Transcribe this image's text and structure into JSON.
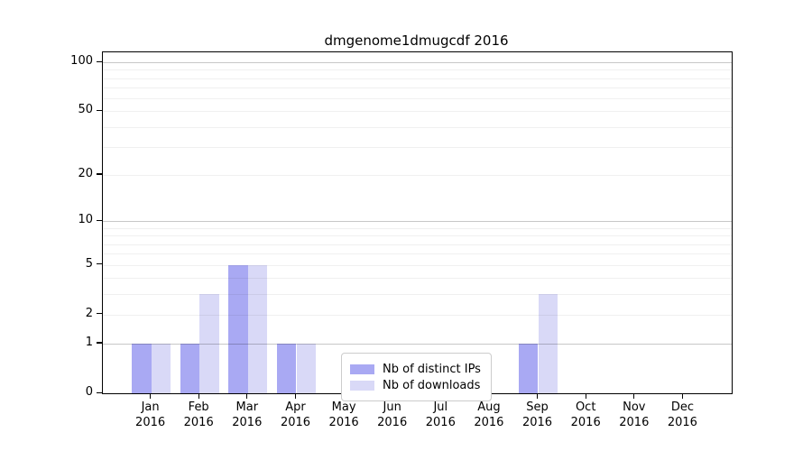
{
  "chart_data": {
    "type": "bar",
    "title": "dmgenome1dmugcdf 2016",
    "categories": [
      "Jan 2016",
      "Feb 2016",
      "Mar 2016",
      "Apr 2016",
      "May 2016",
      "Jun 2016",
      "Jul 2016",
      "Aug 2016",
      "Sep 2016",
      "Oct 2016",
      "Nov 2016",
      "Dec 2016"
    ],
    "x_tick_labels": [
      {
        "month": "Jan",
        "year": "2016"
      },
      {
        "month": "Feb",
        "year": "2016"
      },
      {
        "month": "Mar",
        "year": "2016"
      },
      {
        "month": "Apr",
        "year": "2016"
      },
      {
        "month": "May",
        "year": "2016"
      },
      {
        "month": "Jun",
        "year": "2016"
      },
      {
        "month": "Jul",
        "year": "2016"
      },
      {
        "month": "Aug",
        "year": "2016"
      },
      {
        "month": "Sep",
        "year": "2016"
      },
      {
        "month": "Oct",
        "year": "2016"
      },
      {
        "month": "Nov",
        "year": "2016"
      },
      {
        "month": "Dec",
        "year": "2016"
      }
    ],
    "series": [
      {
        "name": "Nb of distinct IPs",
        "color": "#a9a9f3",
        "values": [
          1,
          1,
          5,
          1,
          0,
          0,
          0,
          0,
          1,
          0,
          0,
          0
        ]
      },
      {
        "name": "Nb of downloads",
        "color": "#d9d9f7",
        "values": [
          1,
          3,
          5,
          1,
          0,
          0,
          0,
          0,
          3,
          0,
          0,
          0
        ]
      }
    ],
    "y_ticks": [
      0,
      1,
      2,
      5,
      10,
      20,
      50,
      100
    ],
    "major_gridlines": [
      1,
      10,
      100
    ],
    "minor_gridlines": [
      2,
      3,
      4,
      5,
      6,
      7,
      8,
      9,
      20,
      30,
      40,
      50,
      60,
      70,
      80,
      90
    ],
    "scale": "log1p",
    "ylim": [
      0,
      115
    ],
    "grid": true,
    "legend_position": "lower center"
  }
}
